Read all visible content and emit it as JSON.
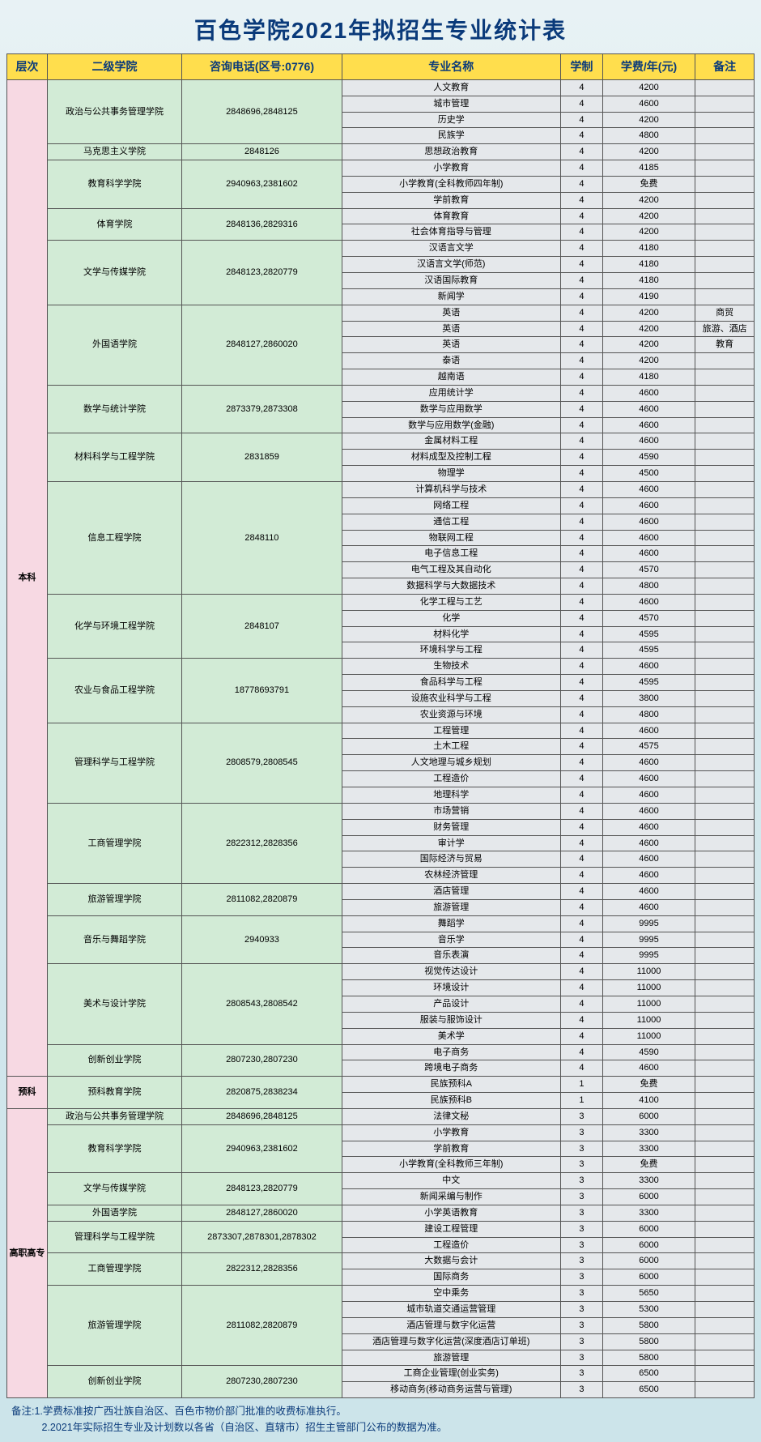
{
  "title": "百色学院2021年拟招生专业统计表",
  "headers": {
    "level": "层次",
    "school": "二级学院",
    "phone": "咨询电话(区号:0776)",
    "major": "专业名称",
    "duration": "学制",
    "fee": "学费/年(元)",
    "note": "备注"
  },
  "levels": [
    {
      "name": "本科",
      "schools": [
        {
          "name": "政治与公共事务管理学院",
          "phone": "2848696,2848125",
          "majors": [
            {
              "name": "人文教育",
              "dur": "4",
              "fee": "4200",
              "note": ""
            },
            {
              "name": "城市管理",
              "dur": "4",
              "fee": "4600",
              "note": ""
            },
            {
              "name": "历史学",
              "dur": "4",
              "fee": "4200",
              "note": ""
            },
            {
              "name": "民族学",
              "dur": "4",
              "fee": "4800",
              "note": ""
            }
          ]
        },
        {
          "name": "马克思主义学院",
          "phone": "2848126",
          "majors": [
            {
              "name": "思想政治教育",
              "dur": "4",
              "fee": "4200",
              "note": ""
            }
          ]
        },
        {
          "name": "教育科学学院",
          "phone": "2940963,2381602",
          "majors": [
            {
              "name": "小学教育",
              "dur": "4",
              "fee": "4185",
              "note": ""
            },
            {
              "name": "小学教育(全科教师四年制)",
              "dur": "4",
              "fee": "免费",
              "note": ""
            },
            {
              "name": "学前教育",
              "dur": "4",
              "fee": "4200",
              "note": ""
            }
          ]
        },
        {
          "name": "体育学院",
          "phone": "2848136,2829316",
          "majors": [
            {
              "name": "体育教育",
              "dur": "4",
              "fee": "4200",
              "note": ""
            },
            {
              "name": "社会体育指导与管理",
              "dur": "4",
              "fee": "4200",
              "note": ""
            }
          ]
        },
        {
          "name": "文学与传媒学院",
          "phone": "2848123,2820779",
          "majors": [
            {
              "name": "汉语言文学",
              "dur": "4",
              "fee": "4180",
              "note": ""
            },
            {
              "name": "汉语言文学(师范)",
              "dur": "4",
              "fee": "4180",
              "note": ""
            },
            {
              "name": "汉语国际教育",
              "dur": "4",
              "fee": "4180",
              "note": ""
            },
            {
              "name": "新闻学",
              "dur": "4",
              "fee": "4190",
              "note": ""
            }
          ]
        },
        {
          "name": "外国语学院",
          "phone": "2848127,2860020",
          "majors": [
            {
              "name": "英语",
              "dur": "4",
              "fee": "4200",
              "note": "商贸"
            },
            {
              "name": "英语",
              "dur": "4",
              "fee": "4200",
              "note": "旅游、酒店"
            },
            {
              "name": "英语",
              "dur": "4",
              "fee": "4200",
              "note": "教育"
            },
            {
              "name": "泰语",
              "dur": "4",
              "fee": "4200",
              "note": ""
            },
            {
              "name": "越南语",
              "dur": "4",
              "fee": "4180",
              "note": ""
            }
          ]
        },
        {
          "name": "数学与统计学院",
          "phone": "2873379,2873308",
          "majors": [
            {
              "name": "应用统计学",
              "dur": "4",
              "fee": "4600",
              "note": ""
            },
            {
              "name": "数学与应用数学",
              "dur": "4",
              "fee": "4600",
              "note": ""
            },
            {
              "name": "数学与应用数学(金融)",
              "dur": "4",
              "fee": "4600",
              "note": ""
            }
          ]
        },
        {
          "name": "材料科学与工程学院",
          "phone": "2831859",
          "majors": [
            {
              "name": "金属材料工程",
              "dur": "4",
              "fee": "4600",
              "note": ""
            },
            {
              "name": "材料成型及控制工程",
              "dur": "4",
              "fee": "4590",
              "note": ""
            },
            {
              "name": "物理学",
              "dur": "4",
              "fee": "4500",
              "note": ""
            }
          ]
        },
        {
          "name": "信息工程学院",
          "phone": "2848110",
          "majors": [
            {
              "name": "计算机科学与技术",
              "dur": "4",
              "fee": "4600",
              "note": ""
            },
            {
              "name": "网络工程",
              "dur": "4",
              "fee": "4600",
              "note": ""
            },
            {
              "name": "通信工程",
              "dur": "4",
              "fee": "4600",
              "note": ""
            },
            {
              "name": "物联网工程",
              "dur": "4",
              "fee": "4600",
              "note": ""
            },
            {
              "name": "电子信息工程",
              "dur": "4",
              "fee": "4600",
              "note": ""
            },
            {
              "name": "电气工程及其自动化",
              "dur": "4",
              "fee": "4570",
              "note": ""
            },
            {
              "name": "数据科学与大数据技术",
              "dur": "4",
              "fee": "4800",
              "note": ""
            }
          ]
        },
        {
          "name": "化学与环境工程学院",
          "phone": "2848107",
          "majors": [
            {
              "name": "化学工程与工艺",
              "dur": "4",
              "fee": "4600",
              "note": ""
            },
            {
              "name": "化学",
              "dur": "4",
              "fee": "4570",
              "note": ""
            },
            {
              "name": "材料化学",
              "dur": "4",
              "fee": "4595",
              "note": ""
            },
            {
              "name": "环境科学与工程",
              "dur": "4",
              "fee": "4595",
              "note": ""
            }
          ]
        },
        {
          "name": "农业与食品工程学院",
          "phone": "18778693791",
          "majors": [
            {
              "name": "生物技术",
              "dur": "4",
              "fee": "4600",
              "note": ""
            },
            {
              "name": "食品科学与工程",
              "dur": "4",
              "fee": "4595",
              "note": ""
            },
            {
              "name": "设施农业科学与工程",
              "dur": "4",
              "fee": "3800",
              "note": ""
            },
            {
              "name": "农业资源与环境",
              "dur": "4",
              "fee": "4800",
              "note": ""
            }
          ]
        },
        {
          "name": "管理科学与工程学院",
          "phone": "2808579,2808545",
          "majors": [
            {
              "name": "工程管理",
              "dur": "4",
              "fee": "4600",
              "note": ""
            },
            {
              "name": "土木工程",
              "dur": "4",
              "fee": "4575",
              "note": ""
            },
            {
              "name": "人文地理与城乡规划",
              "dur": "4",
              "fee": "4600",
              "note": ""
            },
            {
              "name": "工程造价",
              "dur": "4",
              "fee": "4600",
              "note": ""
            },
            {
              "name": "地理科学",
              "dur": "4",
              "fee": "4600",
              "note": ""
            }
          ]
        },
        {
          "name": "工商管理学院",
          "phone": "2822312,2828356",
          "majors": [
            {
              "name": "市场营销",
              "dur": "4",
              "fee": "4600",
              "note": ""
            },
            {
              "name": "财务管理",
              "dur": "4",
              "fee": "4600",
              "note": ""
            },
            {
              "name": "审计学",
              "dur": "4",
              "fee": "4600",
              "note": ""
            },
            {
              "name": "国际经济与贸易",
              "dur": "4",
              "fee": "4600",
              "note": ""
            },
            {
              "name": "农林经济管理",
              "dur": "4",
              "fee": "4600",
              "note": ""
            }
          ]
        },
        {
          "name": "旅游管理学院",
          "phone": "2811082,2820879",
          "majors": [
            {
              "name": "酒店管理",
              "dur": "4",
              "fee": "4600",
              "note": ""
            },
            {
              "name": "旅游管理",
              "dur": "4",
              "fee": "4600",
              "note": ""
            }
          ]
        },
        {
          "name": "音乐与舞蹈学院",
          "phone": "2940933",
          "majors": [
            {
              "name": "舞蹈学",
              "dur": "4",
              "fee": "9995",
              "note": ""
            },
            {
              "name": "音乐学",
              "dur": "4",
              "fee": "9995",
              "note": ""
            },
            {
              "name": "音乐表演",
              "dur": "4",
              "fee": "9995",
              "note": ""
            }
          ]
        },
        {
          "name": "美术与设计学院",
          "phone": "2808543,2808542",
          "majors": [
            {
              "name": "视觉传达设计",
              "dur": "4",
              "fee": "11000",
              "note": ""
            },
            {
              "name": "环境设计",
              "dur": "4",
              "fee": "11000",
              "note": ""
            },
            {
              "name": "产品设计",
              "dur": "4",
              "fee": "11000",
              "note": ""
            },
            {
              "name": "服装与服饰设计",
              "dur": "4",
              "fee": "11000",
              "note": ""
            },
            {
              "name": "美术学",
              "dur": "4",
              "fee": "11000",
              "note": ""
            }
          ]
        },
        {
          "name": "创新创业学院",
          "phone": "2807230,2807230",
          "majors": [
            {
              "name": "电子商务",
              "dur": "4",
              "fee": "4590",
              "note": ""
            },
            {
              "name": "跨境电子商务",
              "dur": "4",
              "fee": "4600",
              "note": ""
            }
          ]
        }
      ]
    },
    {
      "name": "预科",
      "schools": [
        {
          "name": "预科教育学院",
          "phone": "2820875,2838234",
          "majors": [
            {
              "name": "民族预科A",
              "dur": "1",
              "fee": "免费",
              "note": ""
            },
            {
              "name": "民族预科B",
              "dur": "1",
              "fee": "4100",
              "note": ""
            }
          ]
        }
      ]
    },
    {
      "name": "高职高专",
      "schools": [
        {
          "name": "政治与公共事务管理学院",
          "phone": "2848696,2848125",
          "majors": [
            {
              "name": "法律文秘",
              "dur": "3",
              "fee": "6000",
              "note": ""
            }
          ]
        },
        {
          "name": "教育科学学院",
          "phone": "2940963,2381602",
          "majors": [
            {
              "name": "小学教育",
              "dur": "3",
              "fee": "3300",
              "note": ""
            },
            {
              "name": "学前教育",
              "dur": "3",
              "fee": "3300",
              "note": ""
            },
            {
              "name": "小学教育(全科教师三年制)",
              "dur": "3",
              "fee": "免费",
              "note": ""
            }
          ]
        },
        {
          "name": "文学与传媒学院",
          "phone": "2848123,2820779",
          "majors": [
            {
              "name": "中文",
              "dur": "3",
              "fee": "3300",
              "note": ""
            },
            {
              "name": "新闻采编与制作",
              "dur": "3",
              "fee": "6000",
              "note": ""
            }
          ]
        },
        {
          "name": "外国语学院",
          "phone": "2848127,2860020",
          "majors": [
            {
              "name": "小学英语教育",
              "dur": "3",
              "fee": "3300",
              "note": ""
            }
          ]
        },
        {
          "name": "管理科学与工程学院",
          "phone": "2873307,2878301,2878302",
          "majors": [
            {
              "name": "建设工程管理",
              "dur": "3",
              "fee": "6000",
              "note": ""
            },
            {
              "name": "工程造价",
              "dur": "3",
              "fee": "6000",
              "note": ""
            }
          ]
        },
        {
          "name": "工商管理学院",
          "phone": "2822312,2828356",
          "majors": [
            {
              "name": "大数据与会计",
              "dur": "3",
              "fee": "6000",
              "note": ""
            },
            {
              "name": "国际商务",
              "dur": "3",
              "fee": "6000",
              "note": ""
            }
          ]
        },
        {
          "name": "旅游管理学院",
          "phone": "2811082,2820879",
          "majors": [
            {
              "name": "空中乘务",
              "dur": "3",
              "fee": "5650",
              "note": ""
            },
            {
              "name": "城市轨道交通运营管理",
              "dur": "3",
              "fee": "5300",
              "note": ""
            },
            {
              "name": "酒店管理与数字化运营",
              "dur": "3",
              "fee": "5800",
              "note": ""
            },
            {
              "name": "酒店管理与数字化运营(深度酒店订单班)",
              "dur": "3",
              "fee": "5800",
              "note": ""
            },
            {
              "name": "旅游管理",
              "dur": "3",
              "fee": "5800",
              "note": ""
            }
          ]
        },
        {
          "name": "创新创业学院",
          "phone": "2807230,2807230",
          "majors": [
            {
              "name": "工商企业管理(创业实务)",
              "dur": "3",
              "fee": "6500",
              "note": ""
            },
            {
              "name": "移动商务(移动商务运营与管理)",
              "dur": "3",
              "fee": "6500",
              "note": ""
            }
          ]
        }
      ]
    }
  ],
  "footnotes": [
    "备注:1.学费标准按广西壮族自治区、百色市物价部门批准的收费标准执行。",
    "　　　2.2021年实际招生专业及计划数以各省（自治区、直辖市）招生主管部门公布的数据为准。"
  ]
}
